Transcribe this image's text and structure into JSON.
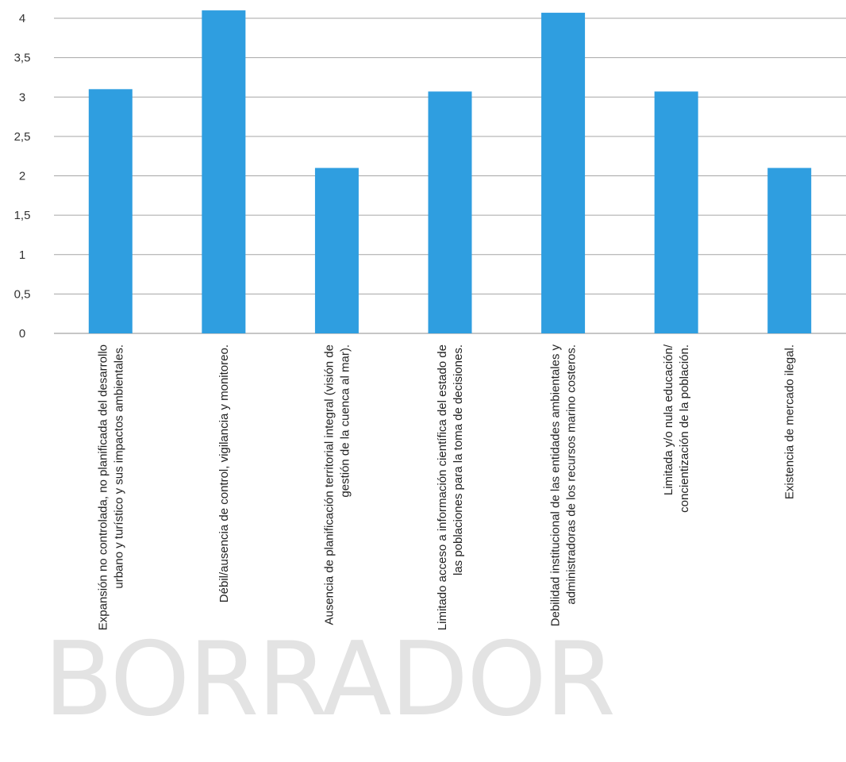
{
  "chart_data": {
    "type": "bar",
    "categories": [
      [
        "Expansión no controlada, no planificada del desarrollo",
        "urbano y turístico y sus impactos ambientales."
      ],
      [
        "Débil/ausencia de control, vigilancia y monitoreo."
      ],
      [
        "Ausencia de planificación territorial integral (visión de",
        "gestión de la cuenca al mar)."
      ],
      [
        "Limitado acceso a información científica del estado de",
        "las poblaciones para la toma de decisiones."
      ],
      [
        "Debilidad institucional de las entidades ambientales y",
        "administradoras de los recursos marino costeros."
      ],
      [
        "Limitada y/o nula educación/",
        "concientización de la población."
      ],
      [
        "Existencia de mercado ilegal."
      ]
    ],
    "values": [
      3.1,
      4.1,
      2.1,
      3.07,
      4.07,
      3.07,
      2.1
    ],
    "ylim": [
      0,
      4
    ],
    "yticks": [
      "0",
      "0,5",
      "1",
      "1,5",
      "2",
      "2,5",
      "3",
      "3,5",
      "4"
    ],
    "grid": true,
    "bar_color": "#2f9ee0",
    "title": "",
    "xlabel": "",
    "ylabel": ""
  },
  "watermark": "BORRADOR"
}
